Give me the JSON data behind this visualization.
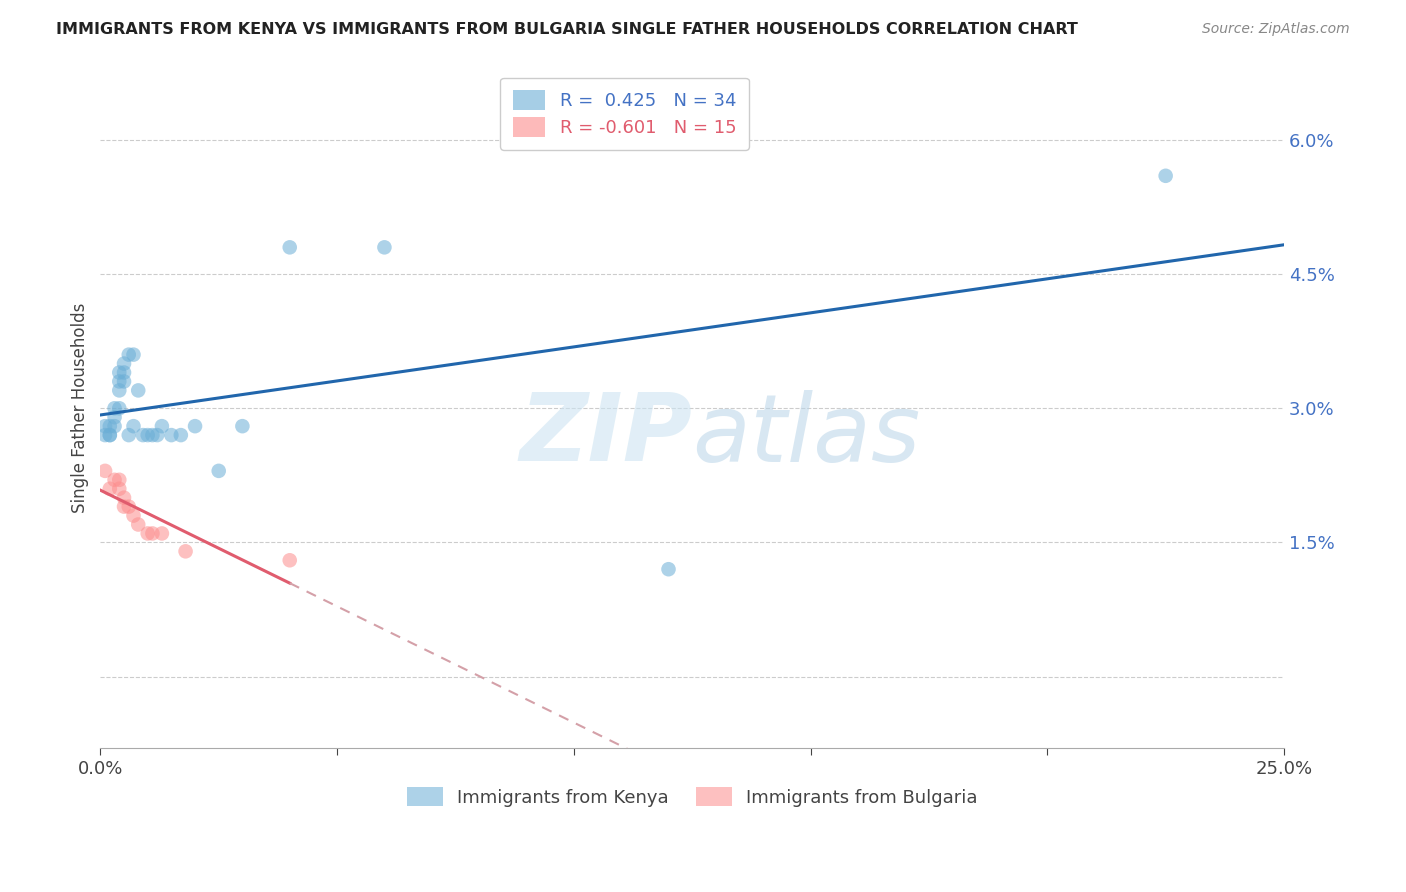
{
  "title": "IMMIGRANTS FROM KENYA VS IMMIGRANTS FROM BULGARIA SINGLE FATHER HOUSEHOLDS CORRELATION CHART",
  "source": "Source: ZipAtlas.com",
  "ylabel": "Single Father Households",
  "xlim": [
    0.0,
    0.25
  ],
  "ylim": [
    -0.008,
    0.068
  ],
  "kenya_R": 0.425,
  "kenya_N": 34,
  "bulgaria_R": -0.601,
  "bulgaria_N": 15,
  "kenya_color": "#6baed6",
  "bulgaria_color": "#fc8d8d",
  "kenya_line_color": "#2166ac",
  "bulgaria_line_color": "#e05c6e",
  "bulgaria_dash_color": "#d4a0a8",
  "watermark_zip": "ZIP",
  "watermark_atlas": "atlas",
  "legend_label_kenya": "Immigrants from Kenya",
  "legend_label_bulgaria": "Immigrants from Bulgaria",
  "kenya_x": [
    0.001,
    0.001,
    0.002,
    0.002,
    0.002,
    0.003,
    0.003,
    0.003,
    0.004,
    0.004,
    0.004,
    0.004,
    0.005,
    0.005,
    0.005,
    0.006,
    0.006,
    0.007,
    0.007,
    0.008,
    0.009,
    0.01,
    0.011,
    0.012,
    0.013,
    0.015,
    0.017,
    0.02,
    0.025,
    0.03,
    0.04,
    0.06,
    0.12,
    0.225
  ],
  "kenya_y": [
    0.027,
    0.028,
    0.027,
    0.028,
    0.027,
    0.028,
    0.03,
    0.029,
    0.033,
    0.034,
    0.032,
    0.03,
    0.035,
    0.034,
    0.033,
    0.036,
    0.027,
    0.036,
    0.028,
    0.032,
    0.027,
    0.027,
    0.027,
    0.027,
    0.028,
    0.027,
    0.027,
    0.028,
    0.023,
    0.028,
    0.048,
    0.048,
    0.012,
    0.056
  ],
  "bulgaria_x": [
    0.001,
    0.002,
    0.003,
    0.004,
    0.004,
    0.005,
    0.005,
    0.006,
    0.007,
    0.008,
    0.01,
    0.011,
    0.013,
    0.018,
    0.04
  ],
  "bulgaria_y": [
    0.023,
    0.021,
    0.022,
    0.021,
    0.022,
    0.02,
    0.019,
    0.019,
    0.018,
    0.017,
    0.016,
    0.016,
    0.016,
    0.014,
    0.013
  ],
  "x_tick_positions": [
    0.0,
    0.05,
    0.1,
    0.15,
    0.2,
    0.25
  ],
  "x_tick_labels": [
    "0.0%",
    "",
    "",
    "",
    "",
    "25.0%"
  ],
  "y_tick_positions": [
    0.0,
    0.015,
    0.03,
    0.045,
    0.06
  ],
  "y_tick_labels": [
    "",
    "1.5%",
    "3.0%",
    "4.5%",
    "6.0%"
  ]
}
